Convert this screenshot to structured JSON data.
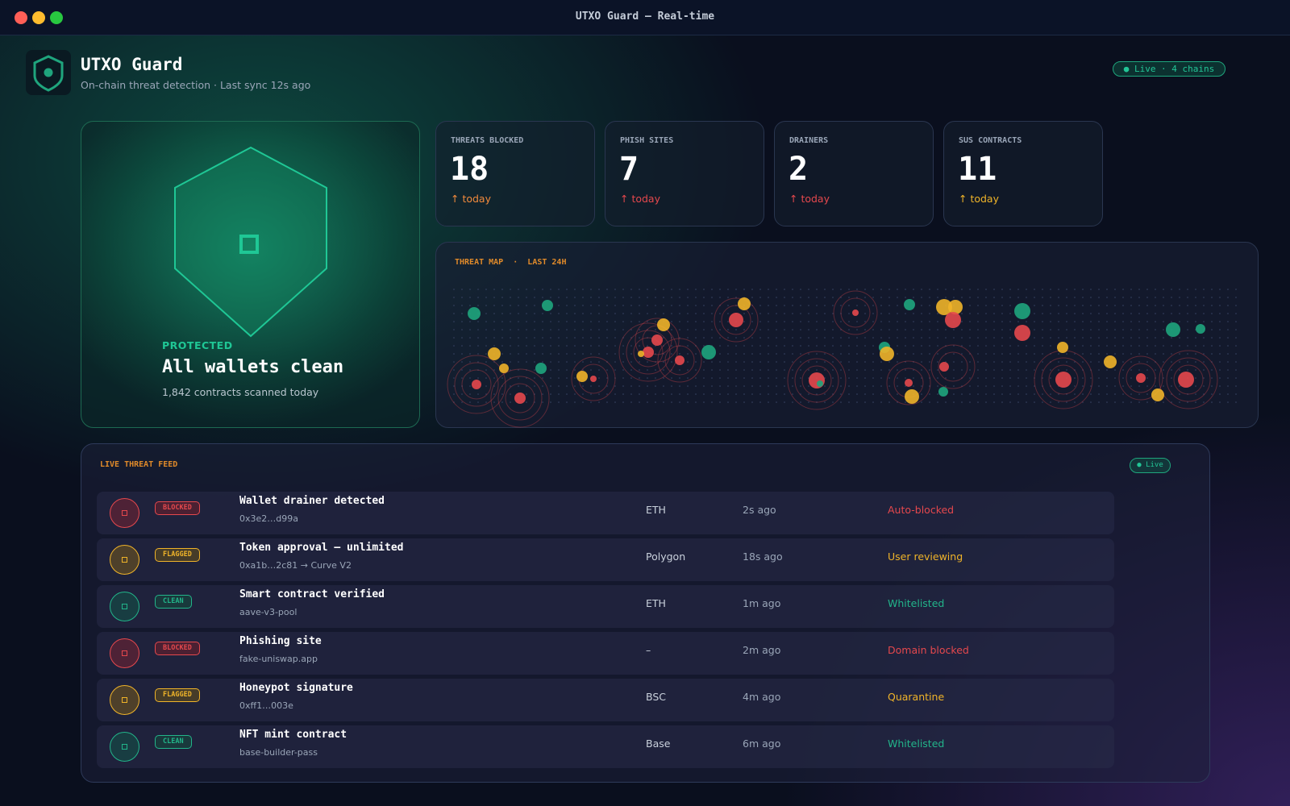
{
  "window": {
    "title": "UTXO Guard — Real-time"
  },
  "header": {
    "app_name": "UTXO Guard",
    "subtitle": "On-chain threat detection · Last sync 12s ago",
    "live_pill": "● Live · 4 chains"
  },
  "hero": {
    "status": "PROTECTED",
    "title": "All wallets clean",
    "subtitle": "1,842 contracts scanned today"
  },
  "stats": [
    {
      "label": "THREATS BLOCKED",
      "value": "18",
      "trend": "↑ today",
      "trend_color": "#f28a3c"
    },
    {
      "label": "PHISH SITES",
      "value": "7",
      "trend": "↑ today",
      "trend_color": "#e5484d"
    },
    {
      "label": "DRAINERS",
      "value": "2",
      "trend": "↑ today",
      "trend_color": "#e5484d"
    },
    {
      "label": "SUS CONTRACTS",
      "value": "11",
      "trend": "↑ today",
      "trend_color": "#f0b429"
    }
  ],
  "threat_map": {
    "label": "THREAT MAP  ·  LAST 24H"
  },
  "feed": {
    "label": "LIVE THREAT FEED",
    "live_badge": "● Live",
    "rows": [
      {
        "status": "BLOCKED",
        "title": "Wallet drainer detected",
        "detail": "0x3e2…d99a",
        "chain": "ETH",
        "time": "2s ago",
        "action": "Auto-blocked"
      },
      {
        "status": "FLAGGED",
        "title": "Token approval — unlimited",
        "detail": "0xa1b…2c81 → Curve V2",
        "chain": "Polygon",
        "time": "18s ago",
        "action": "User reviewing"
      },
      {
        "status": "CLEAN",
        "title": "Smart contract verified",
        "detail": "aave-v3-pool",
        "chain": "ETH",
        "time": "1m ago",
        "action": "Whitelisted"
      },
      {
        "status": "BLOCKED",
        "title": "Phishing site",
        "detail": "fake-uniswap.app",
        "chain": "–",
        "time": "2m ago",
        "action": "Domain blocked"
      },
      {
        "status": "FLAGGED",
        "title": "Honeypot signature",
        "detail": "0xff1…003e",
        "chain": "BSC",
        "time": "4m ago",
        "action": "Quarantine"
      },
      {
        "status": "CLEAN",
        "title": "NFT mint contract",
        "detail": "base-builder-pass",
        "chain": "Base",
        "time": "6m ago",
        "action": "Whitelisted"
      }
    ]
  },
  "colors": {
    "accent_green": "#22b58a",
    "alert_red": "#e5484d",
    "warn_amber": "#f0b429",
    "label_orange": "#e08a2a"
  },
  "icons": {
    "logo": "shield-icon",
    "hero": "shield-icon",
    "row": "square-icon"
  }
}
